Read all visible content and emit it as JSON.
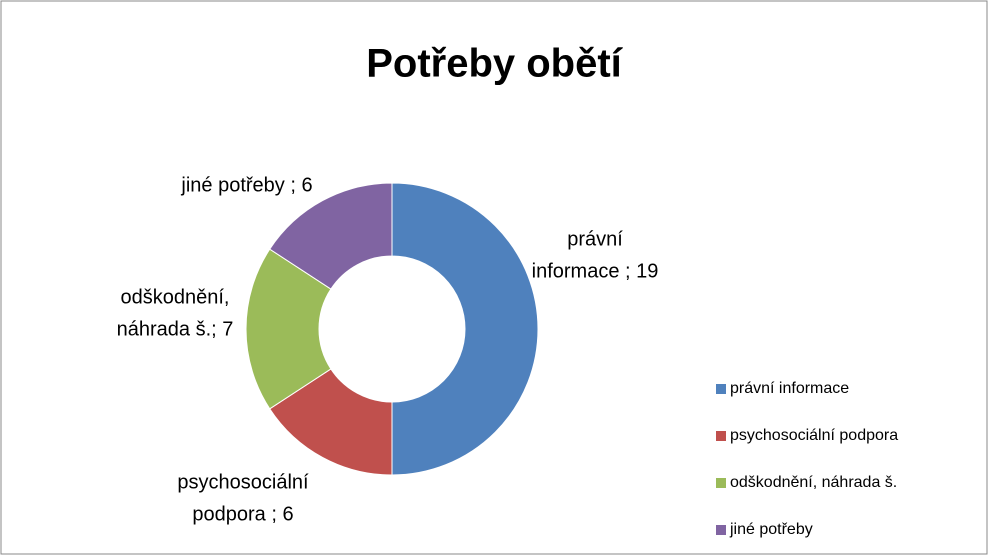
{
  "chart_data": {
    "type": "donut",
    "title": "Potřeby obětí",
    "categories": [
      "právní informace",
      "psychosociální podpora",
      "odškodnění, náhrada š.",
      "jiné potřeby"
    ],
    "values": [
      19,
      6,
      7,
      6
    ],
    "value_labels": [
      [
        "právní",
        "informace ; 19"
      ],
      [
        "psychosociální",
        "podpora  ; 6"
      ],
      [
        "odškodnění,",
        "náhrada š.; 7"
      ],
      [
        "jiné potřeby ; 6"
      ]
    ],
    "colors": [
      "#4f81bd",
      "#c0504d",
      "#9bbb59",
      "#8064a2"
    ],
    "legend": "right"
  }
}
